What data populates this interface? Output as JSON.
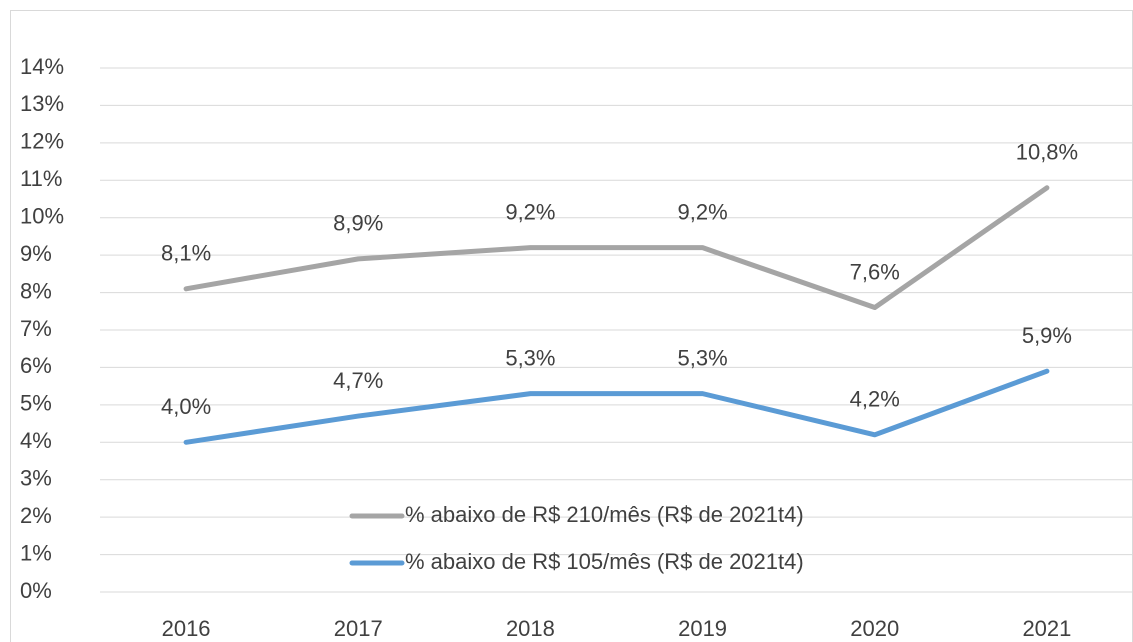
{
  "chart_data": {
    "type": "line",
    "categories": [
      "2016",
      "2017",
      "2018",
      "2019",
      "2020",
      "2021"
    ],
    "series": [
      {
        "name": "% abaixo de R$ 210/mês (R$ de 2021t4)",
        "color": "#a5a5a5",
        "values": [
          8.1,
          8.9,
          9.2,
          9.2,
          7.6,
          10.8
        ],
        "value_labels": [
          "8,1%",
          "8,9%",
          "9,2%",
          "9,2%",
          "7,6%",
          "10,8%"
        ]
      },
      {
        "name": "% abaixo de R$ 105/mês (R$ de 2021t4)",
        "color": "#5b9bd5",
        "values": [
          4.0,
          4.7,
          5.3,
          5.3,
          4.2,
          5.9
        ],
        "value_labels": [
          "4,0%",
          "4,7%",
          "5,3%",
          "5,3%",
          "4,2%",
          "5,9%"
        ]
      }
    ],
    "ylim": [
      0,
      14
    ],
    "yticks": [
      {
        "value": 0,
        "label": "0%"
      },
      {
        "value": 1,
        "label": "1%"
      },
      {
        "value": 2,
        "label": "2%"
      },
      {
        "value": 3,
        "label": "3%"
      },
      {
        "value": 4,
        "label": "4%"
      },
      {
        "value": 5,
        "label": "5%"
      },
      {
        "value": 6,
        "label": "6%"
      },
      {
        "value": 7,
        "label": "7%"
      },
      {
        "value": 8,
        "label": "8%"
      },
      {
        "value": 9,
        "label": "9%"
      },
      {
        "value": 10,
        "label": "10%"
      },
      {
        "value": 11,
        "label": "11%"
      },
      {
        "value": 12,
        "label": "12%"
      },
      {
        "value": 13,
        "label": "13%"
      },
      {
        "value": 14,
        "label": "14%"
      }
    ],
    "grid": true,
    "legend": "bottom"
  }
}
